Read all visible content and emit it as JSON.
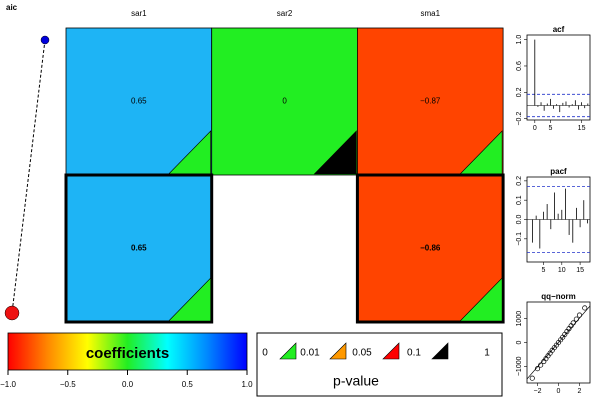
{
  "aic": {
    "title": "aic"
  },
  "heatmap": {
    "columns": [
      "sar1",
      "sar2",
      "sma1"
    ],
    "row_bold": [
      false,
      true
    ],
    "rows": [
      [
        {
          "value": 0.65,
          "label": "0.65",
          "color": "#1eb4f5",
          "p_color": "#22ee22"
        },
        {
          "value": 0,
          "label": "0",
          "color": "#22ee22",
          "p_color": "#000000"
        },
        {
          "value": -0.87,
          "label": "−0.87",
          "color": "#ff4400",
          "p_color": "#22ee22"
        }
      ],
      [
        {
          "value": 0.65,
          "label": "0.65",
          "color": "#1eb4f5",
          "p_color": "#22ee22"
        },
        null,
        {
          "value": -0.86,
          "label": "−0.86",
          "color": "#ff4400",
          "p_color": "#22ee22"
        }
      ]
    ]
  },
  "colorbar": {
    "title": "coefficients",
    "colors": [
      "#ff0000",
      "#ff8800",
      "#ffff00",
      "#22ee22",
      "#00ffff",
      "#0088ff",
      "#0000ff"
    ],
    "xlim": [
      -1,
      1
    ],
    "xticks": [
      {
        "value": -1,
        "label": "−1.0"
      },
      {
        "value": -0.5,
        "label": "−0.5"
      },
      {
        "value": 0,
        "label": "0.0"
      },
      {
        "value": 0.5,
        "label": "0.5"
      },
      {
        "value": 1,
        "label": "1.0"
      }
    ]
  },
  "pvalue_legend": {
    "title": "p-value",
    "labels": [
      "0",
      "0.01",
      "0.05",
      "0.1",
      "1"
    ],
    "colors": [
      "#22ee22",
      "#ff9900",
      "#ff0000",
      "#000000"
    ]
  },
  "acf": {
    "title": "acf",
    "x": [
      0,
      1,
      2,
      3,
      4,
      5,
      6,
      7,
      8,
      9,
      10,
      11,
      12,
      13,
      14,
      15,
      16,
      17
    ],
    "values": [
      1,
      -0.02,
      0.05,
      -0.08,
      0.03,
      0.1,
      -0.05,
      0.02,
      -0.1,
      0.04,
      0.06,
      -0.03,
      0.02,
      0.08,
      -0.06,
      0.05,
      -0.04,
      0.03
    ],
    "conf": 0.17,
    "xlim": [
      -2.5,
      17.7
    ],
    "ylim": [
      -0.22,
      1.07
    ],
    "xticks": [
      0,
      5,
      15
    ],
    "yticks": [
      {
        "value": 1,
        "label": "1.0"
      },
      0.6,
      0.2,
      {
        "value": -0.2,
        "label": "−0.2"
      }
    ]
  },
  "pacf": {
    "title": "pacf",
    "x": [
      1,
      2,
      3,
      4,
      5,
      6,
      7,
      8,
      9,
      10,
      11,
      12,
      13,
      14,
      15,
      16,
      17
    ],
    "values": [
      0.0,
      -0.12,
      0.02,
      -0.15,
      0.04,
      0.08,
      -0.05,
      0.14,
      0.03,
      0.05,
      0.16,
      -0.08,
      -0.12,
      0.06,
      -0.04,
      0.1,
      -0.02
    ],
    "conf": 0.17,
    "xlim": [
      0.5,
      17.7
    ],
    "ylim": [
      -0.22,
      0.22
    ],
    "xticks": [
      5,
      10,
      15
    ],
    "yticks": [
      0.2,
      0.1,
      {
        "value": 0,
        "label": "0.0"
      },
      {
        "value": -0.1,
        "label": "−0.1"
      }
    ]
  },
  "qq": {
    "title": "qq−norm",
    "x": [
      -2.5,
      -2,
      -1.7,
      -1.4,
      -1.2,
      -1,
      -0.8,
      -0.6,
      -0.4,
      -0.2,
      0,
      0.2,
      0.4,
      0.6,
      0.8,
      1,
      1.2,
      1.4,
      1.7,
      2,
      2.5
    ],
    "y": [
      -1500,
      -1100,
      -950,
      -800,
      -680,
      -560,
      -450,
      -330,
      -220,
      -110,
      0,
      110,
      220,
      340,
      460,
      580,
      700,
      820,
      980,
      1150,
      1450
    ],
    "xlim": [
      -3,
      3
    ],
    "ylim": [
      -1700,
      1700
    ],
    "xticks": [
      {
        "value": -2,
        "label": "−2"
      },
      0,
      2
    ],
    "yticks": [
      1000,
      0,
      {
        "value": -1000,
        "label": "−1000"
      }
    ]
  }
}
